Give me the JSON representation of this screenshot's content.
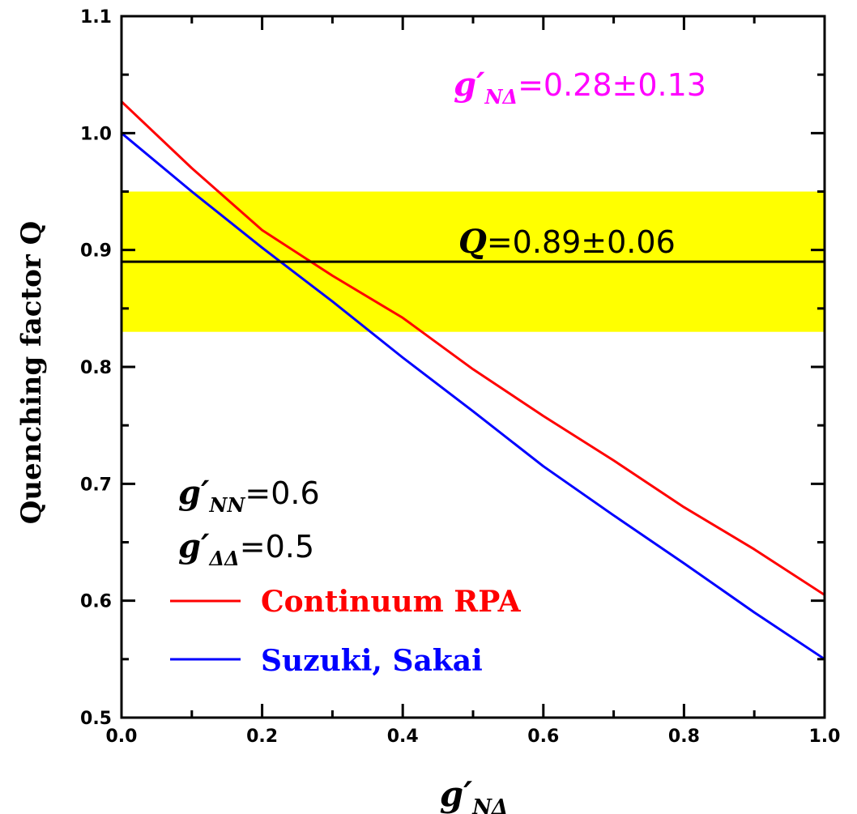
{
  "chart_data": {
    "type": "line",
    "x_axis": {
      "label_symbol": "g′",
      "label_subscript": "NΔ",
      "range": [
        0.0,
        1.0
      ],
      "ticks": [
        "0.0",
        "0.2",
        "0.4",
        "0.6",
        "0.8",
        "1.0"
      ]
    },
    "y_axis": {
      "label": "Quenching factor Q",
      "range": [
        0.5,
        1.1
      ],
      "ticks": [
        "0.5",
        "0.6",
        "0.7",
        "0.8",
        "0.9",
        "1.0",
        "1.1"
      ]
    },
    "band": {
      "center": 0.89,
      "lower": 0.83,
      "upper": 0.95,
      "color": "#ffff00"
    },
    "series": [
      {
        "name": "Continuum RPA",
        "color": "#ff0000",
        "x": [
          0.0,
          0.1,
          0.2,
          0.3,
          0.4,
          0.5,
          0.6,
          0.7,
          0.8,
          0.9,
          1.0
        ],
        "y": [
          1.027,
          0.97,
          0.917,
          0.878,
          0.842,
          0.798,
          0.758,
          0.72,
          0.68,
          0.644,
          0.605
        ]
      },
      {
        "name": "Suzuki, Sakai",
        "color": "#0000ff",
        "x": [
          0.0,
          0.1,
          0.2,
          0.3,
          0.4,
          0.5,
          0.6,
          0.7,
          0.8,
          0.9,
          1.0
        ],
        "y": [
          1.0,
          0.95,
          0.902,
          0.856,
          0.808,
          0.762,
          0.715,
          0.673,
          0.632,
          0.59,
          0.55
        ]
      }
    ],
    "annotations": {
      "top_right": {
        "symbol": "g′",
        "subscript": "NΔ",
        "value": "=0.28±0.13",
        "color": "#ff00ff"
      },
      "band_label": {
        "symbol": "Q",
        "value": "=0.89±0.06",
        "color": "#000000"
      },
      "params": [
        {
          "symbol": "g′",
          "subscript": "NN",
          "value": "=0.6"
        },
        {
          "symbol": "g′",
          "subscript": "ΔΔ",
          "value": "=0.5"
        }
      ]
    },
    "grid": false,
    "legend_position": "bottom-left"
  }
}
